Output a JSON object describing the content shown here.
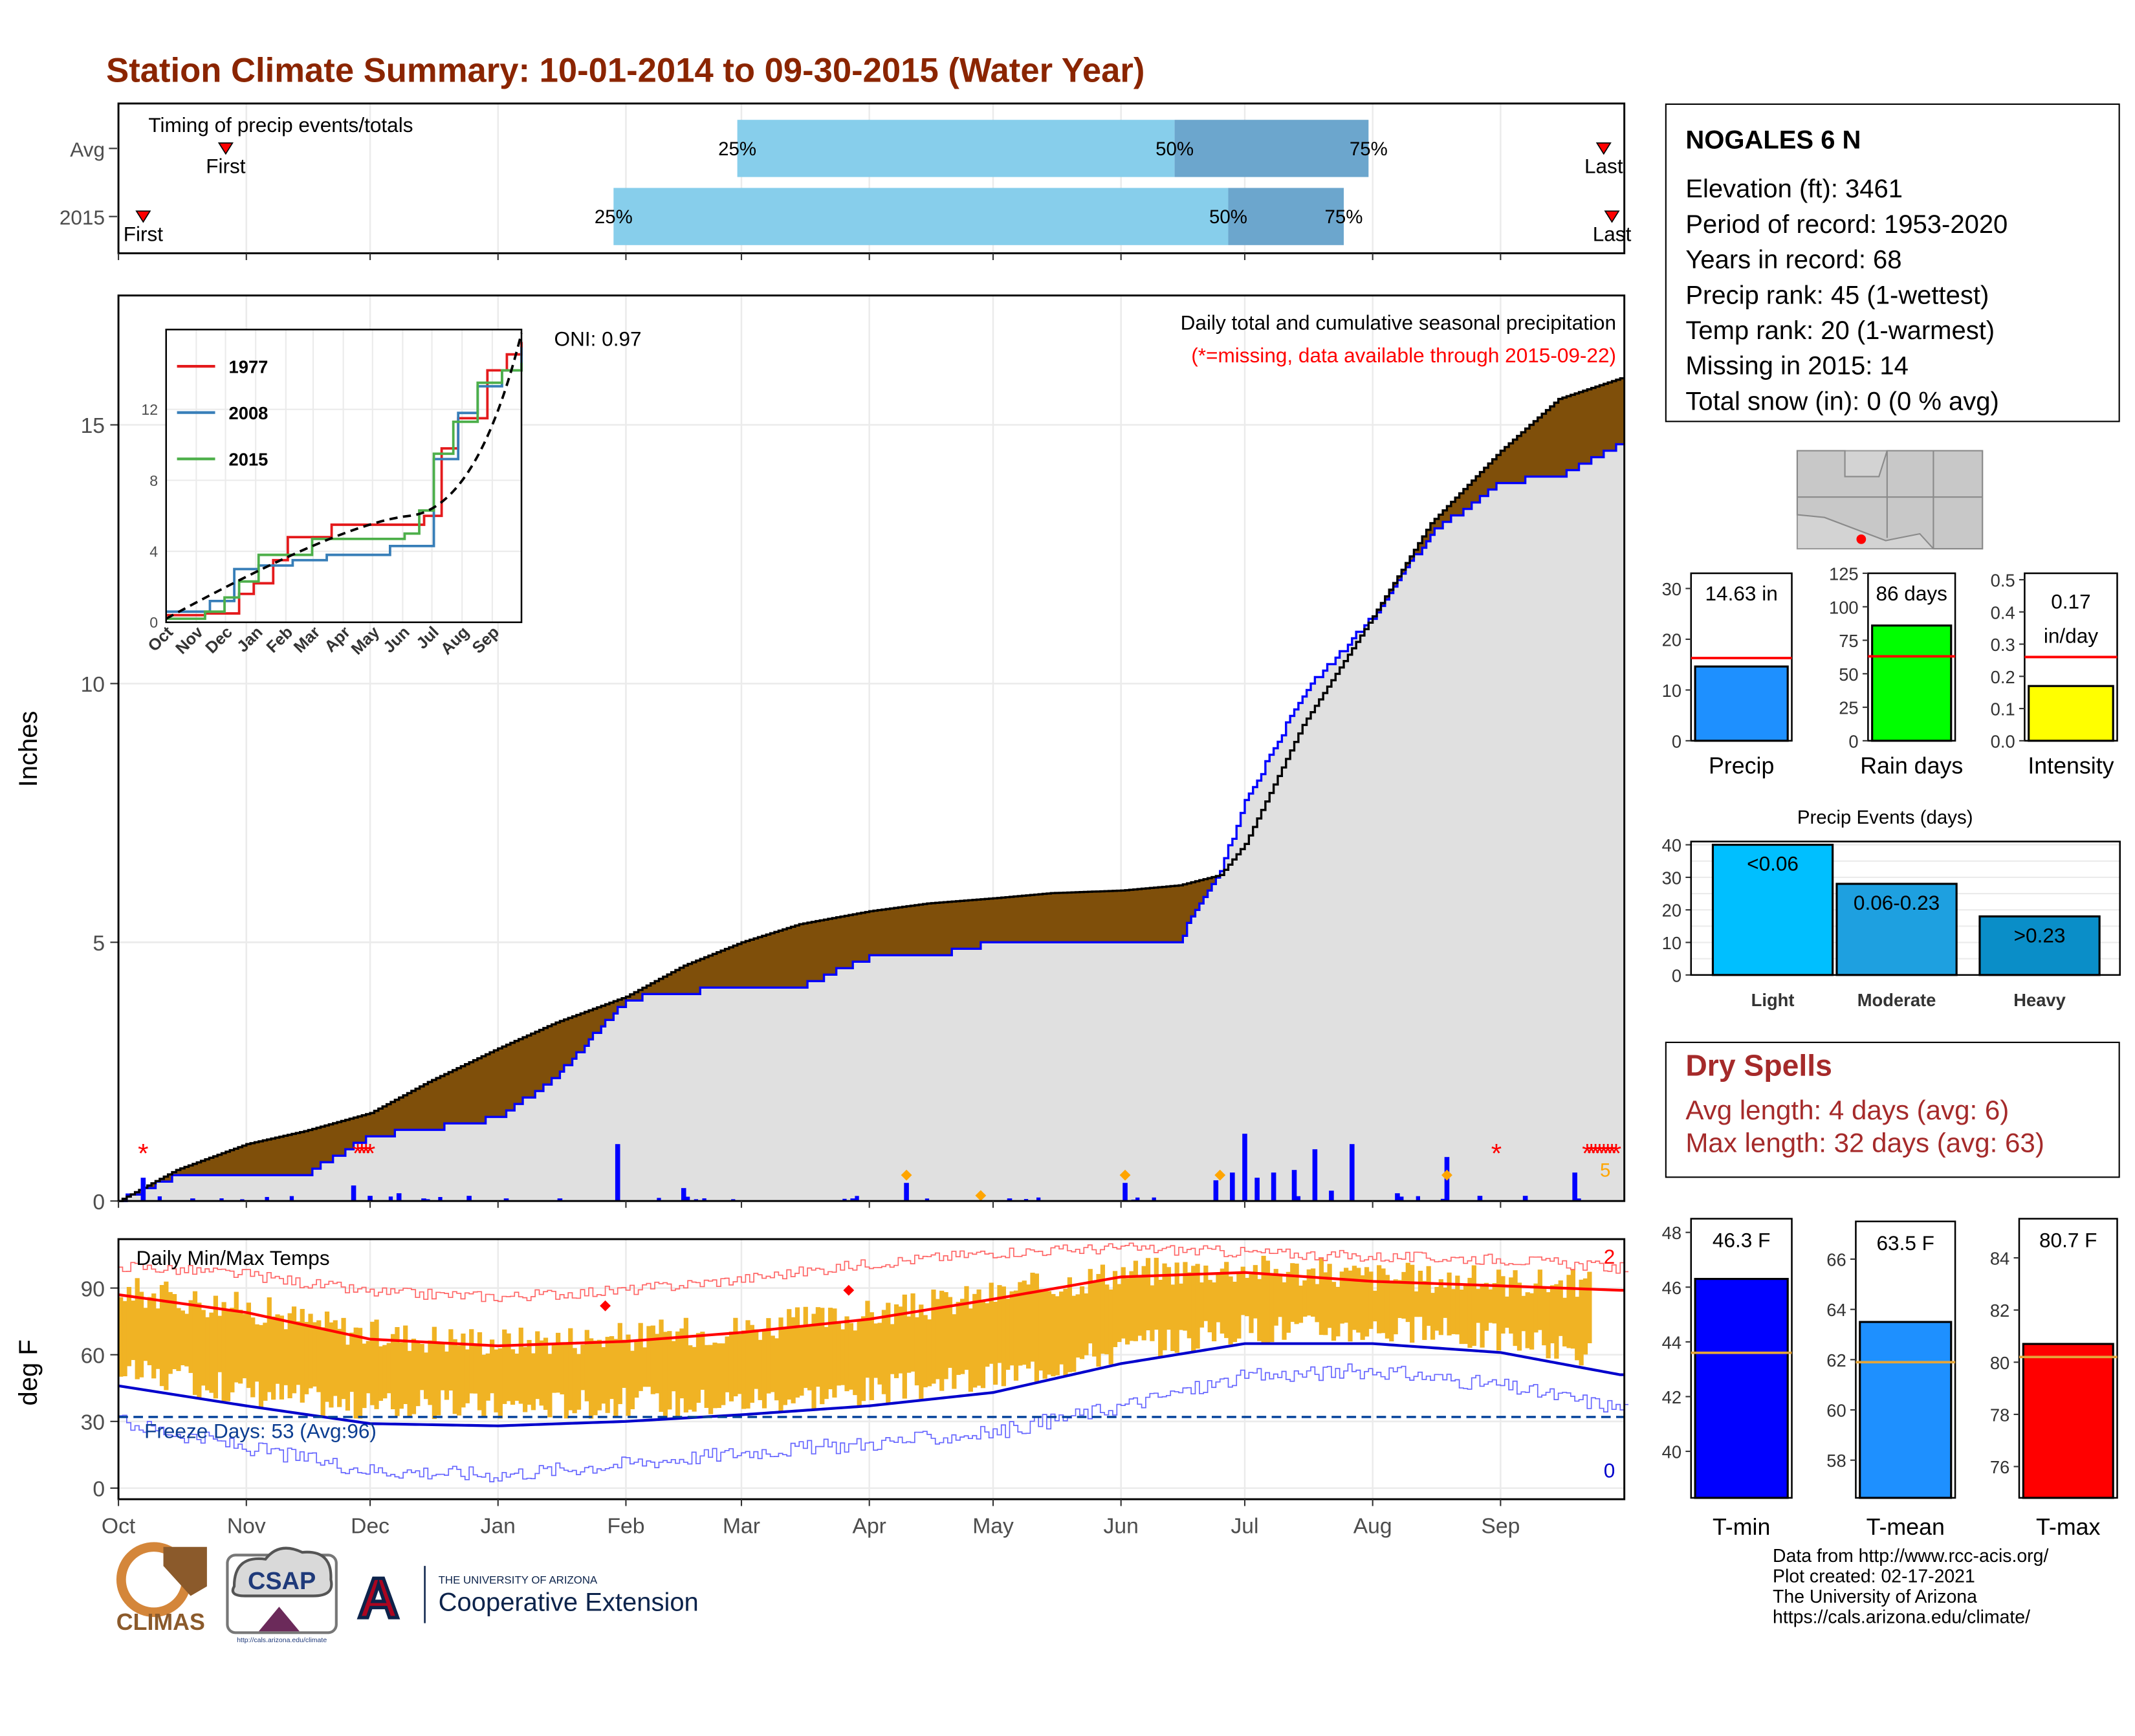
{
  "title": "Station Climate Summary: 10-01-2014 to 09-30-2015 (Water Year)",
  "colors": {
    "title": "#8b2500",
    "avg_cum": "#7f4f0a",
    "above_avg": "#007f00",
    "daily_bar": "#0000ff",
    "temp_bar": "#f0b324",
    "tmax_norm": "#ff0000",
    "tmin_norm": "#0000cc"
  },
  "timing": {
    "label": "Timing of precip events/totals",
    "rows": [
      {
        "name": "Avg",
        "first_label": "First",
        "last_label": "Last",
        "first": "2014-10-27",
        "last": "2015-09-26",
        "p25": "2015-02-28",
        "p50": "2015-06-14",
        "p75": "2015-07-31",
        "p25_label": "25%",
        "p50_label": "50%",
        "p75_label": "75%"
      },
      {
        "name": "2015",
        "first_label": "First",
        "last_label": "Last",
        "first": "2014-10-07",
        "last": "2015-09-28",
        "p25": "2015-01-29",
        "p50": "2015-06-27",
        "p75": "2015-07-25",
        "p25_label": "25%",
        "p50_label": "50%",
        "p75_label": "75%"
      }
    ]
  },
  "precip": {
    "ylabel": "Inches",
    "note1": "Daily total and cumulative seasonal precipitation",
    "note2": "(*=missing, data available through 2015-09-22)",
    "oni": "ONI: 0.97",
    "missing_count_label": "5",
    "months": [
      "Oct",
      "Nov",
      "Dec",
      "Jan",
      "Feb",
      "Mar",
      "Apr",
      "May",
      "Jun",
      "Jul",
      "Aug",
      "Sep"
    ],
    "yticks": [
      0,
      5,
      10,
      15
    ]
  },
  "inset": {
    "series": [
      {
        "name": "1977",
        "color": "#e41a1c"
      },
      {
        "name": "2008",
        "color": "#377eb8"
      },
      {
        "name": "2015",
        "color": "#4daf4a"
      }
    ],
    "yticks": [
      0,
      4,
      8,
      12
    ],
    "months": [
      "Oct",
      "Nov",
      "Dec",
      "Jan",
      "Feb",
      "Mar",
      "Apr",
      "May",
      "Jun",
      "Jul",
      "Aug",
      "Sep"
    ]
  },
  "station": {
    "name": "NOGALES 6 N",
    "elevation": "Elevation (ft): 3461",
    "period": "Period of record: 1953-2020",
    "years": "Years in record: 68",
    "precip_rank": "Precip rank: 45 (1-wettest)",
    "temp_rank": "Temp rank: 20 (1-warmest)",
    "missing": "Missing in 2015: 14",
    "snow": "Total snow (in): 0 (0 % avg)"
  },
  "precip_summary": [
    {
      "label": "Precip",
      "value_label": "14.63 in",
      "value": 14.63,
      "avg": 16.3,
      "ymax": 33,
      "yticks": [
        0,
        10,
        20,
        30
      ],
      "color": "#1e90ff"
    },
    {
      "label": "Rain days",
      "value_label": "86 days",
      "value": 86,
      "avg": 63,
      "ymax": 125,
      "yticks": [
        0,
        25,
        50,
        75,
        100,
        125
      ],
      "color": "#00ff00"
    },
    {
      "label": "Intensity",
      "value_label": "0.17\nin/day",
      "value": 0.17,
      "avg": 0.26,
      "ymax": 0.52,
      "yticks": [
        0.0,
        0.1,
        0.2,
        0.3,
        0.4,
        0.5
      ],
      "color": "#ffff00"
    }
  ],
  "precip_events": {
    "title": "Precip Events (days)",
    "categories": [
      "Light",
      "Moderate",
      "Heavy"
    ],
    "labels": [
      "<0.06",
      "0.06-0.23",
      ">0.23"
    ],
    "values": [
      40,
      28,
      18
    ],
    "colors": [
      "#00bfff",
      "#1ea0e0",
      "#0a8ec8"
    ],
    "yticks": [
      0,
      10,
      20,
      30,
      40
    ]
  },
  "dry_spells": {
    "title": "Dry Spells",
    "avg": "Avg length: 4 days (avg: 6)",
    "max": "Max length: 32 days (avg: 63)"
  },
  "temps": {
    "title": "Daily Min/Max Temps",
    "ylabel": "deg F",
    "freeze": "Freeze Days: 53 (Avg:96)",
    "record_high_count": "2",
    "record_low_count": "0",
    "yticks": [
      0,
      30,
      60,
      90
    ],
    "months": [
      "Oct",
      "Nov",
      "Dec",
      "Jan",
      "Feb",
      "Mar",
      "Apr",
      "May",
      "Jun",
      "Jul",
      "Aug",
      "Sep"
    ]
  },
  "temp_summary": [
    {
      "label": "T-min",
      "value_label": "46.3 F",
      "value": 46.3,
      "avg": 43.6,
      "ymin": 38.3,
      "ymax": 48.5,
      "yticks": [
        40,
        42,
        44,
        46,
        48
      ],
      "color": "#0000ff"
    },
    {
      "label": "T-mean",
      "value_label": "63.5 F",
      "value": 63.5,
      "avg": 61.9,
      "ymin": 56.5,
      "ymax": 67.5,
      "yticks": [
        58,
        60,
        62,
        64,
        66
      ],
      "color": "#1e90ff"
    },
    {
      "label": "T-max",
      "value_label": "80.7 F",
      "value": 80.7,
      "avg": 80.2,
      "ymin": 74.8,
      "ymax": 85.5,
      "yticks": [
        76,
        78,
        80,
        82,
        84
      ],
      "color": "#ff0000"
    }
  ],
  "credits": [
    "Data from http://www.rcc-acis.org/",
    "Plot created: 02-17-2021",
    "The University of Arizona",
    "https://cals.arizona.edu/climate/"
  ],
  "logos": {
    "climas": "CLIMAS",
    "csap": "CSAP",
    "csap_url": "http://cals.arizona.edu/climate",
    "ua_line1": "THE UNIVERSITY OF ARIZONA",
    "ua_line2": "Cooperative Extension",
    "ua_letter": "A"
  },
  "chart_data": [
    {
      "type": "area",
      "title": "Daily total and cumulative seasonal precipitation",
      "ylabel": "Inches",
      "ylim": [
        0,
        17.5
      ],
      "x_dates": [
        "2014-10-01",
        "2014-10-15",
        "2014-11-01",
        "2014-11-15",
        "2014-12-01",
        "2014-12-15",
        "2015-01-01",
        "2015-01-15",
        "2015-02-01",
        "2015-02-15",
        "2015-03-01",
        "2015-03-15",
        "2015-04-01",
        "2015-04-15",
        "2015-05-01",
        "2015-05-15",
        "2015-06-01",
        "2015-06-15",
        "2015-06-25",
        "2015-07-01",
        "2015-07-15",
        "2015-08-01",
        "2015-08-15",
        "2015-09-01",
        "2015-09-15",
        "2015-09-30"
      ],
      "series": [
        {
          "name": "avg_cumulative",
          "values": [
            0,
            0.6,
            1.1,
            1.35,
            1.7,
            2.3,
            2.95,
            3.45,
            3.95,
            4.55,
            5.0,
            5.35,
            5.6,
            5.75,
            5.85,
            5.95,
            6.0,
            6.1,
            6.3,
            6.9,
            9.2,
            11.3,
            13.1,
            14.5,
            15.5,
            15.9
          ]
        },
        {
          "name": "2015_cumulative",
          "values": [
            0,
            0.5,
            0.5,
            0.5,
            1.25,
            1.4,
            1.6,
            2.4,
            3.9,
            4.05,
            4.1,
            4.15,
            4.7,
            4.7,
            5.0,
            5.0,
            5.05,
            5.05,
            6.4,
            7.7,
            9.8,
            11.3,
            12.9,
            13.9,
            14.0,
            14.63
          ]
        }
      ],
      "daily_bars": [
        {
          "date": "2014-10-07",
          "value": 0.45
        },
        {
          "date": "2014-10-19",
          "value": 0.05
        },
        {
          "date": "2014-11-27",
          "value": 0.3
        },
        {
          "date": "2014-12-01",
          "value": 0.1
        },
        {
          "date": "2014-12-08",
          "value": 0.15
        },
        {
          "date": "2014-12-14",
          "value": 0.05
        },
        {
          "date": "2014-12-25",
          "value": 0.1
        },
        {
          "date": "2015-01-03",
          "value": 0.05
        },
        {
          "date": "2015-01-16",
          "value": 0.05
        },
        {
          "date": "2015-01-30",
          "value": 1.1
        },
        {
          "date": "2015-02-15",
          "value": 0.25
        },
        {
          "date": "2015-03-28",
          "value": 0.05
        },
        {
          "date": "2015-04-10",
          "value": 0.35
        },
        {
          "date": "2015-05-05",
          "value": 0.05
        },
        {
          "date": "2015-06-02",
          "value": 0.35
        },
        {
          "date": "2015-06-24",
          "value": 0.4
        },
        {
          "date": "2015-06-28",
          "value": 0.55
        },
        {
          "date": "2015-07-01",
          "value": 1.3
        },
        {
          "date": "2015-07-04",
          "value": 0.45
        },
        {
          "date": "2015-07-08",
          "value": 0.55
        },
        {
          "date": "2015-07-13",
          "value": 0.6
        },
        {
          "date": "2015-07-18",
          "value": 1.0
        },
        {
          "date": "2015-07-22",
          "value": 0.2
        },
        {
          "date": "2015-07-27",
          "value": 1.1
        },
        {
          "date": "2015-08-07",
          "value": 0.15
        },
        {
          "date": "2015-08-19",
          "value": 0.85
        },
        {
          "date": "2015-08-27",
          "value": 0.1
        },
        {
          "date": "2015-09-07",
          "value": 0.1
        },
        {
          "date": "2015-09-19",
          "value": 0.55
        }
      ]
    },
    {
      "type": "line",
      "title": "Daily Min/Max Temps",
      "ylabel": "deg F",
      "ylim": [
        -5,
        112
      ],
      "x_dates": [
        "2014-10-01",
        "2014-11-01",
        "2014-12-01",
        "2015-01-01",
        "2015-02-01",
        "2015-03-01",
        "2015-04-01",
        "2015-05-01",
        "2015-06-01",
        "2015-07-01",
        "2015-08-01",
        "2015-09-01",
        "2015-09-30"
      ],
      "series": [
        {
          "name": "avg_max",
          "values": [
            87,
            79,
            67,
            64,
            66,
            70,
            76,
            85,
            95,
            97,
            93,
            91,
            89
          ]
        },
        {
          "name": "avg_min",
          "values": [
            46,
            37,
            29,
            28,
            30,
            33,
            37,
            43,
            56,
            65,
            65,
            61,
            51
          ]
        },
        {
          "name": "record_max",
          "values": [
            100,
            96,
            88,
            86,
            89,
            94,
            101,
            106,
            108,
            106,
            104,
            103,
            99
          ]
        },
        {
          "name": "record_min",
          "values": [
            30,
            18,
            8,
            6,
            11,
            16,
            20,
            25,
            37,
            50,
            53,
            46,
            36
          ]
        }
      ],
      "freeze_line": 32
    }
  ]
}
